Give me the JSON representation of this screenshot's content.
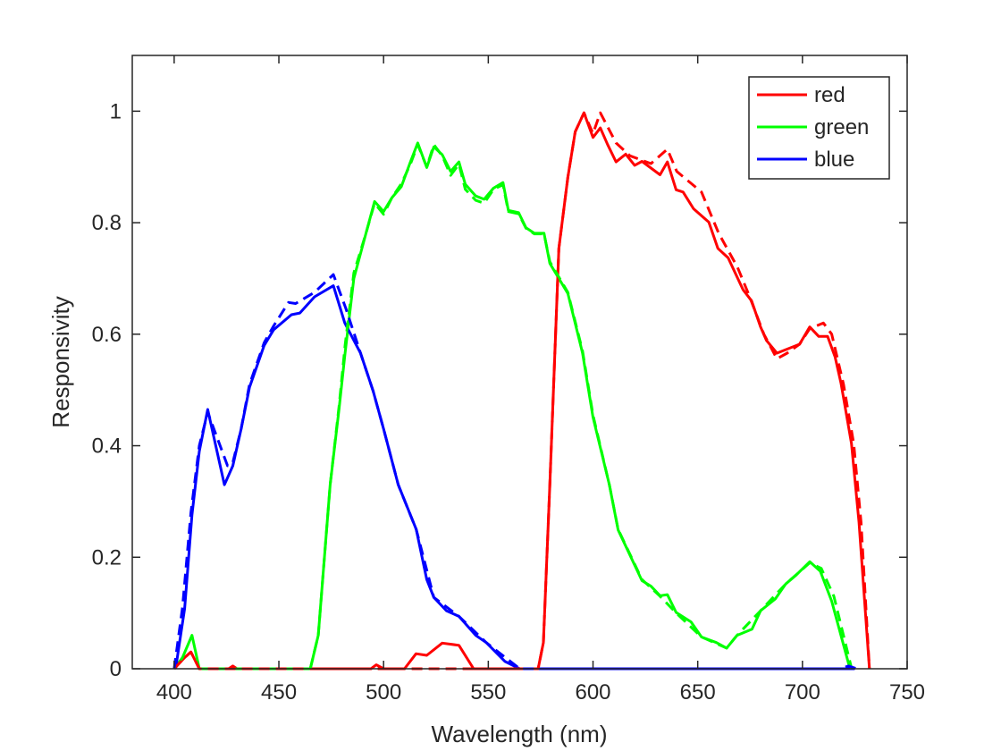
{
  "chart_data": {
    "type": "line",
    "title": "",
    "xlabel": "Wavelength (nm)",
    "ylabel": "Responsivity",
    "xlim": [
      380,
      750
    ],
    "ylim": [
      0,
      1.1
    ],
    "xticks": [
      400,
      450,
      500,
      550,
      600,
      650,
      700,
      750
    ],
    "yticks": [
      0,
      0.2,
      0.4,
      0.6,
      0.8,
      1
    ],
    "ytick_labels": [
      "0",
      "0.2",
      "0.4",
      "0.6",
      "0.8",
      "1"
    ],
    "grid": false,
    "legend_position": "top-right",
    "series": [
      {
        "name": "red",
        "color": "#ff0000",
        "style": "solid",
        "x": [
          400,
          405,
          408,
          412,
          426,
          428,
          430,
          494,
          496.5,
          500,
          510,
          515.5,
          520.6,
          528,
          536,
          543,
          573.8,
          576.3,
          579.4,
          583.7,
          588,
          591.5,
          595.7,
          600,
          603.5,
          607,
          611,
          615.6,
          619.9,
          623.4,
          632,
          635.5,
          639.7,
          643,
          648,
          655.3,
          659.6,
          664.5,
          671.6,
          675.7,
          680,
          682.8,
          687.8,
          698.6,
          703.5,
          707.8,
          712,
          715.6,
          718.4,
          723.4,
          727,
          732
        ],
        "y": [
          0,
          0.02,
          0.03,
          0,
          0,
          0.005,
          0,
          0,
          0.007,
          0,
          0,
          0.027,
          0.024,
          0.046,
          0.042,
          0,
          0,
          0.047,
          0.33,
          0.754,
          0.882,
          0.963,
          0.997,
          0.953,
          0.97,
          0.94,
          0.909,
          0.923,
          0.903,
          0.91,
          0.886,
          0.909,
          0.859,
          0.855,
          0.825,
          0.801,
          0.754,
          0.737,
          0.68,
          0.66,
          0.613,
          0.589,
          0.566,
          0.582,
          0.613,
          0.596,
          0.596,
          0.559,
          0.512,
          0.404,
          0.263,
          0
        ]
      },
      {
        "name": "green",
        "color": "#00ff00",
        "style": "solid",
        "x": [
          400,
          404,
          408.5,
          412,
          465,
          468.8,
          474.5,
          478.7,
          481.6,
          485.8,
          491.5,
          495.7,
          500,
          504,
          508.5,
          512.8,
          516.3,
          520.6,
          524,
          528,
          532,
          536,
          539,
          544,
          548,
          552.5,
          557,
          559.6,
          564.5,
          568,
          572,
          576.6,
          579.4,
          588,
          595,
          600,
          607.8,
          612,
          623.4,
          627.7,
          632,
          635.5,
          639.7,
          646.8,
          651.8,
          658.9,
          663.8,
          668.8,
          675.9,
          680,
          687,
          692,
          697,
          703.5,
          708.5,
          714,
          722.7
        ],
        "y": [
          0,
          0.02,
          0.06,
          0,
          0,
          0.06,
          0.33,
          0.465,
          0.566,
          0.7,
          0.78,
          0.838,
          0.82,
          0.845,
          0.865,
          0.909,
          0.943,
          0.899,
          0.936,
          0.922,
          0.892,
          0.909,
          0.869,
          0.848,
          0.842,
          0.862,
          0.872,
          0.822,
          0.818,
          0.791,
          0.781,
          0.781,
          0.727,
          0.673,
          0.566,
          0.451,
          0.33,
          0.249,
          0.158,
          0.148,
          0.131,
          0.133,
          0.101,
          0.084,
          0.057,
          0.047,
          0.037,
          0.06,
          0.071,
          0.104,
          0.125,
          0.152,
          0.168,
          0.192,
          0.175,
          0.121,
          0
        ]
      },
      {
        "name": "blue",
        "color": "#0000ff",
        "style": "solid",
        "x": [
          400.7,
          405,
          408.5,
          412,
          416,
          424,
          428,
          432,
          436,
          443,
          447.5,
          456,
          460,
          467,
          476,
          481.5,
          489,
          495,
          500,
          507,
          515.6,
          520.6,
          524,
          530,
          536,
          544,
          549,
          558,
          565,
          725
        ],
        "y": [
          0,
          0.108,
          0.276,
          0.39,
          0.465,
          0.33,
          0.364,
          0.43,
          0.505,
          0.58,
          0.608,
          0.635,
          0.638,
          0.667,
          0.687,
          0.62,
          0.566,
          0.498,
          0.43,
          0.33,
          0.25,
          0.16,
          0.128,
          0.104,
          0.094,
          0.06,
          0.047,
          0.013,
          0,
          0
        ]
      },
      {
        "color": "#ff0000",
        "style": "dashed",
        "x": [
          400,
          405,
          408,
          412,
          573.8,
          576.3,
          579.4,
          583.7,
          588,
          591.5,
          595.7,
          600,
          603.5,
          611,
          617.7,
          627.7,
          635.5,
          640,
          651.8,
          660,
          669,
          674.5,
          681.6,
          687.8,
          692.7,
          698.6,
          703.5,
          710,
          714,
          719.6,
          724.5,
          728,
          732
        ],
        "y": [
          0,
          0.02,
          0.03,
          0,
          0,
          0.047,
          0.33,
          0.754,
          0.882,
          0.963,
          0.997,
          0.96,
          0.997,
          0.943,
          0.92,
          0.906,
          0.932,
          0.892,
          0.855,
          0.781,
          0.72,
          0.67,
          0.6,
          0.556,
          0.566,
          0.582,
          0.61,
          0.62,
          0.6,
          0.51,
          0.404,
          0.263,
          0
        ]
      },
      {
        "color": "#00ff00",
        "style": "dashed",
        "x": [
          465,
          468.8,
          474.5,
          478.7,
          481.6,
          485.8,
          491.5,
          495.7,
          500,
          504,
          508.5,
          512.8,
          516.3,
          520.6,
          524,
          528,
          532,
          536,
          539,
          544,
          548,
          552.5,
          557,
          559.6,
          564.5,
          568,
          572,
          576.6,
          579.4,
          588,
          595,
          600,
          607.8,
          612,
          623.4,
          632,
          639.7,
          651.8,
          663.8,
          668.8,
          680,
          692,
          703.5,
          709,
          715,
          723.5
        ],
        "y": [
          0,
          0.06,
          0.33,
          0.47,
          0.58,
          0.71,
          0.78,
          0.835,
          0.815,
          0.845,
          0.87,
          0.905,
          0.94,
          0.9,
          0.94,
          0.92,
          0.885,
          0.905,
          0.86,
          0.84,
          0.835,
          0.86,
          0.868,
          0.82,
          0.816,
          0.79,
          0.78,
          0.78,
          0.73,
          0.675,
          0.57,
          0.455,
          0.33,
          0.25,
          0.16,
          0.13,
          0.1,
          0.057,
          0.037,
          0.06,
          0.104,
          0.152,
          0.19,
          0.18,
          0.13,
          0
        ]
      },
      {
        "color": "#0000ff",
        "style": "dashed",
        "x": [
          400,
          404,
          408,
          412,
          416,
          425.5,
          428,
          432,
          436,
          443,
          447.5,
          454.6,
          458,
          467,
          476,
          482,
          489,
          495,
          500,
          507,
          515.6,
          524,
          536,
          549,
          565,
          600,
          700,
          718,
          722,
          726
        ],
        "y": [
          0,
          0.11,
          0.28,
          0.4,
          0.46,
          0.364,
          0.37,
          0.43,
          0.51,
          0.585,
          0.615,
          0.657,
          0.655,
          0.675,
          0.707,
          0.646,
          0.566,
          0.498,
          0.43,
          0.33,
          0.25,
          0.128,
          0.094,
          0.047,
          0,
          0,
          0,
          0,
          0.005,
          0
        ]
      }
    ]
  }
}
